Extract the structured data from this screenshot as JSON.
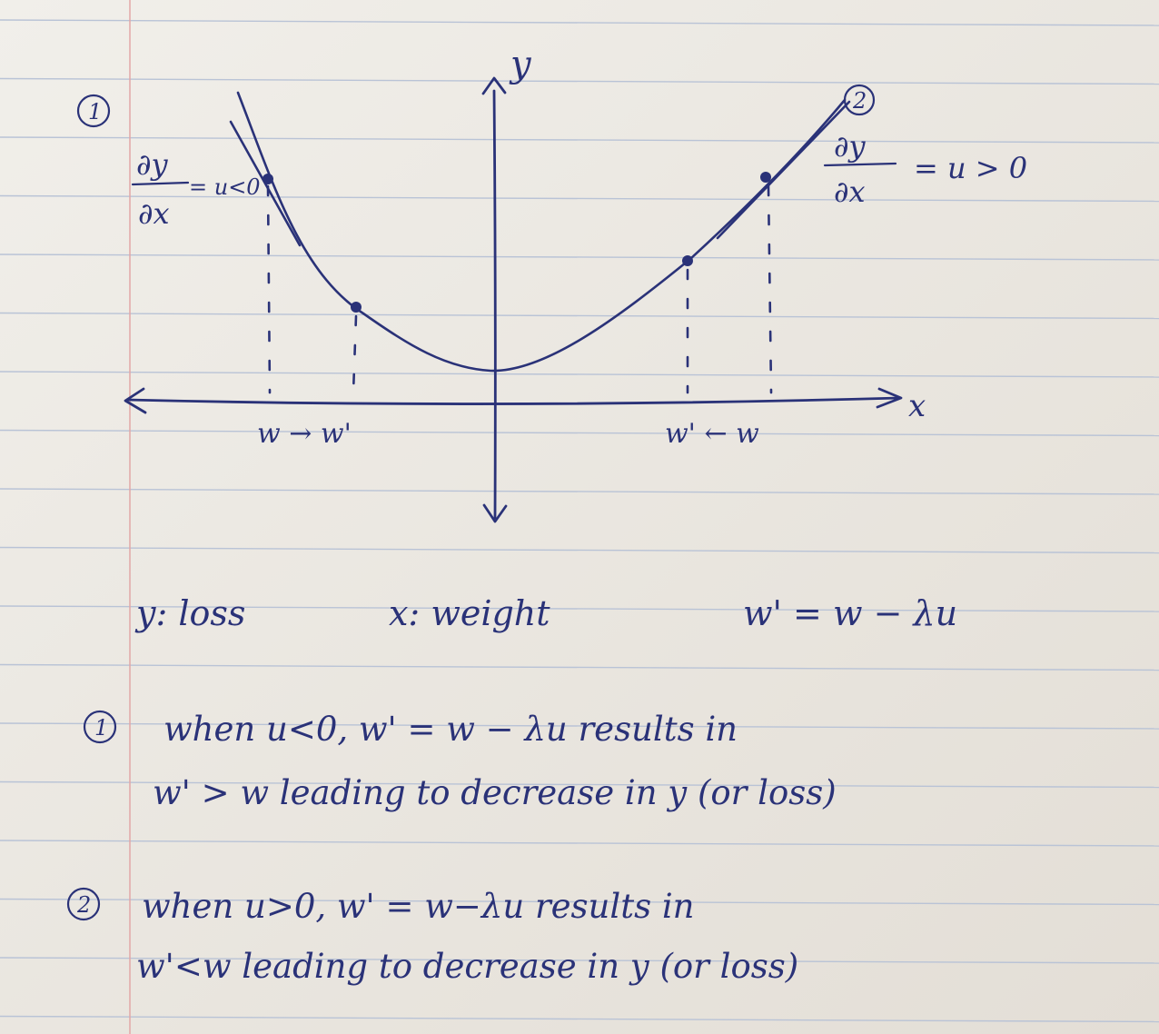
{
  "diagram": {
    "axes": {
      "x_label": "x",
      "y_label": "y"
    },
    "markers": {
      "left": "1",
      "right": "2"
    },
    "derivatives": {
      "left": {
        "numerator": "∂y",
        "denominator": "∂x",
        "relation": "= u<0"
      },
      "right": {
        "numerator": "∂y",
        "denominator": "∂x",
        "relation": "= u > 0"
      }
    },
    "x_annotations": {
      "left": "w → w'",
      "right": "w' ← w"
    }
  },
  "legend": {
    "y": "y: loss",
    "x": "x: weight",
    "formula": "w' = w − λu"
  },
  "notes": [
    {
      "marker": "1",
      "line1": "when u<0, w' = w − λu results in",
      "line2": "w' > w leading to decrease in y (or loss)"
    },
    {
      "marker": "2",
      "line1": "when u>0, w' = w−λu results in",
      "line2": "w'<w leading to decrease in y (or loss)"
    }
  ],
  "colors": {
    "ink": "#2a3278",
    "paper": "#ebe8e2",
    "rule": "#b9c3d6",
    "margin": "#e2a7a7"
  }
}
